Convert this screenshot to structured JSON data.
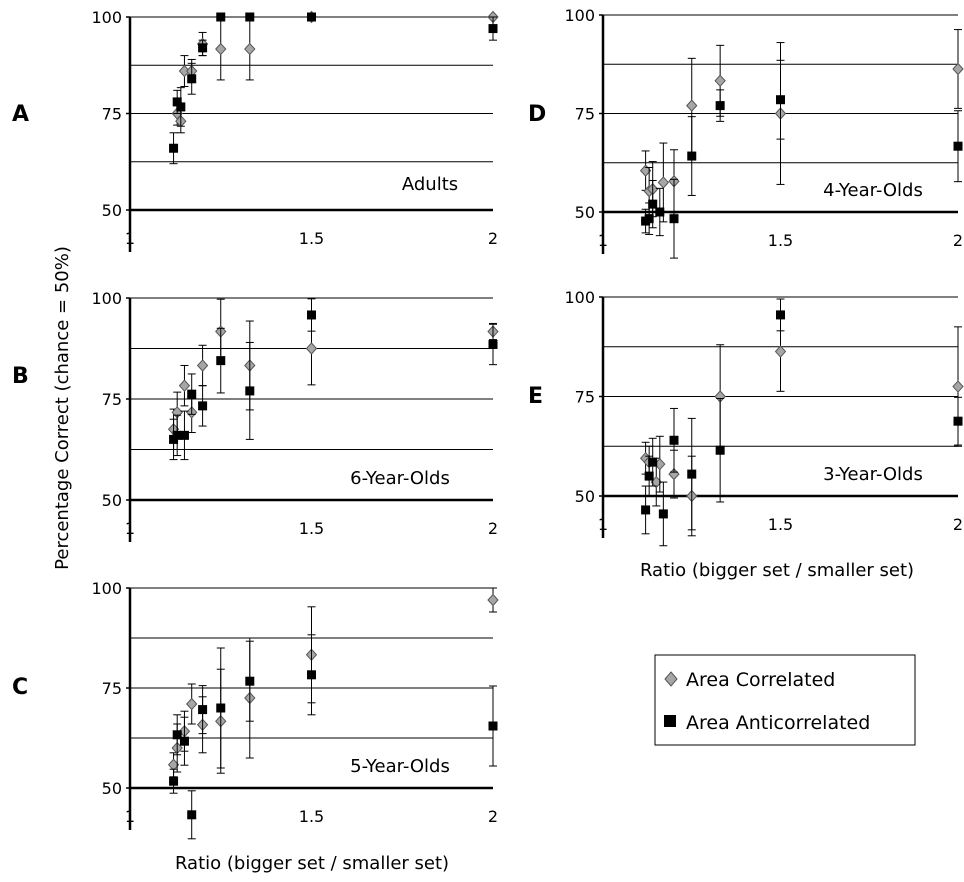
{
  "figure": {
    "ylabel": "Percentage Correct (chance = 50%)",
    "xlabel_left": "Ratio (bigger set / smaller set)",
    "xlabel_right": "Ratio (bigger set / smaller set)",
    "legend": [
      {
        "label": "Area Correlated",
        "marker": "diamond",
        "color": "#a6a6a6"
      },
      {
        "label": "Area Anticorrelated",
        "marker": "square",
        "color": "#000000"
      }
    ]
  },
  "chart_data": [
    {
      "type": "scatter",
      "panel": "A",
      "title": "Adults",
      "xlim": [
        1,
        2
      ],
      "ylim": [
        50,
        100
      ],
      "xticks": [
        "1",
        "1.5",
        "2"
      ],
      "yticks": [
        "50",
        "75",
        "100"
      ],
      "gridlines": [
        62.5,
        75,
        87.5,
        100
      ],
      "series": [
        {
          "name": "Area Correlated",
          "points": [
            {
              "x": 1.13,
              "y": 75,
              "err": 3
            },
            {
              "x": 1.14,
              "y": 73,
              "err": 3
            },
            {
              "x": 1.15,
              "y": 86,
              "err": 4
            },
            {
              "x": 1.17,
              "y": 86,
              "err": 3
            },
            {
              "x": 1.2,
              "y": 93,
              "err": 3
            },
            {
              "x": 1.25,
              "y": 91.7,
              "err": 8
            },
            {
              "x": 1.33,
              "y": 91.7,
              "err": 8
            },
            {
              "x": 1.5,
              "y": 100,
              "err": 0
            },
            {
              "x": 2,
              "y": 100,
              "err": 0
            }
          ]
        },
        {
          "name": "Area Anticorrelated",
          "points": [
            {
              "x": 1.12,
              "y": 66,
              "err": 4
            },
            {
              "x": 1.13,
              "y": 78,
              "err": 3
            },
            {
              "x": 1.14,
              "y": 76.7,
              "err": 5
            },
            {
              "x": 1.17,
              "y": 84,
              "err": 4
            },
            {
              "x": 1.2,
              "y": 92,
              "err": 2
            },
            {
              "x": 1.25,
              "y": 100,
              "err": 0
            },
            {
              "x": 1.33,
              "y": 100,
              "err": 0
            },
            {
              "x": 1.5,
              "y": 100,
              "err": 0
            },
            {
              "x": 2,
              "y": 97,
              "err": 3
            }
          ]
        }
      ]
    },
    {
      "type": "scatter",
      "panel": "B",
      "title": "6-Year-Olds",
      "xlim": [
        1,
        2
      ],
      "ylim": [
        50,
        100
      ],
      "xticks": [
        "1",
        "1.5",
        "2"
      ],
      "yticks": [
        "50",
        "75",
        "100"
      ],
      "gridlines": [
        62.5,
        75,
        87.5,
        100
      ],
      "series": [
        {
          "name": "Area Correlated",
          "points": [
            {
              "x": 1.12,
              "y": 67.5,
              "err": 5
            },
            {
              "x": 1.13,
              "y": 71.7,
              "err": 5
            },
            {
              "x": 1.15,
              "y": 78.3,
              "err": 5
            },
            {
              "x": 1.17,
              "y": 71.7,
              "err": 5
            },
            {
              "x": 1.2,
              "y": 83.3,
              "err": 5
            },
            {
              "x": 1.25,
              "y": 91.7,
              "err": 8
            },
            {
              "x": 1.33,
              "y": 83.3,
              "err": 11
            },
            {
              "x": 1.5,
              "y": 87.5,
              "err": 9
            },
            {
              "x": 2,
              "y": 91.7,
              "err": 2
            }
          ]
        },
        {
          "name": "Area Anticorrelated",
          "points": [
            {
              "x": 1.12,
              "y": 65,
              "err": 5
            },
            {
              "x": 1.13,
              "y": 66,
              "err": 5
            },
            {
              "x": 1.15,
              "y": 66,
              "err": 6
            },
            {
              "x": 1.17,
              "y": 76.2,
              "err": 5
            },
            {
              "x": 1.2,
              "y": 73.3,
              "err": 5
            },
            {
              "x": 1.25,
              "y": 84.5,
              "err": 8
            },
            {
              "x": 1.33,
              "y": 77,
              "err": 12
            },
            {
              "x": 1.5,
              "y": 95.8,
              "err": 4
            },
            {
              "x": 2,
              "y": 88.5,
              "err": 5
            }
          ]
        }
      ]
    },
    {
      "type": "scatter",
      "panel": "C",
      "title": "5-Year-Olds",
      "xlim": [
        1,
        2
      ],
      "ylim": [
        50,
        100
      ],
      "xticks": [
        "1",
        "1.5",
        "2"
      ],
      "yticks": [
        "50",
        "75",
        "100"
      ],
      "gridlines": [
        62.5,
        75,
        87.5,
        100
      ],
      "series": [
        {
          "name": "Area Correlated",
          "points": [
            {
              "x": 1.12,
              "y": 55.8,
              "err": 3
            },
            {
              "x": 1.13,
              "y": 60,
              "err": 6
            },
            {
              "x": 1.15,
              "y": 64.2,
              "err": 5
            },
            {
              "x": 1.17,
              "y": 71,
              "err": 5
            },
            {
              "x": 1.2,
              "y": 65.8,
              "err": 7
            },
            {
              "x": 1.25,
              "y": 66.7,
              "err": 13
            },
            {
              "x": 1.33,
              "y": 72.5,
              "err": 15
            },
            {
              "x": 1.5,
              "y": 83.3,
              "err": 12
            },
            {
              "x": 2,
              "y": 97,
              "err": 3
            }
          ]
        },
        {
          "name": "Area Anticorrelated",
          "points": [
            {
              "x": 1.12,
              "y": 51.7,
              "err": 3
            },
            {
              "x": 1.13,
              "y": 63.3,
              "err": 5
            },
            {
              "x": 1.15,
              "y": 61.7,
              "err": 6
            },
            {
              "x": 1.17,
              "y": 43.3,
              "err": 6
            },
            {
              "x": 1.2,
              "y": 69.6,
              "err": 6
            },
            {
              "x": 1.25,
              "y": 70,
              "err": 15
            },
            {
              "x": 1.33,
              "y": 76.7,
              "err": 10
            },
            {
              "x": 1.5,
              "y": 78.3,
              "err": 10
            },
            {
              "x": 2,
              "y": 65.5,
              "err": 10
            }
          ]
        }
      ]
    },
    {
      "type": "scatter",
      "panel": "D",
      "title": "4-Year-Olds",
      "xlim": [
        1,
        2
      ],
      "ylim": [
        50,
        100
      ],
      "xticks": [
        "1",
        "1.5",
        "2"
      ],
      "yticks": [
        "50",
        "75",
        "100"
      ],
      "gridlines": [
        62.5,
        75,
        87.5,
        100
      ],
      "series": [
        {
          "name": "Area Correlated",
          "points": [
            {
              "x": 1.12,
              "y": 60.5,
              "err": 5
            },
            {
              "x": 1.13,
              "y": 55.3,
              "err": 6
            },
            {
              "x": 1.14,
              "y": 55.8,
              "err": 7
            },
            {
              "x": 1.17,
              "y": 57.5,
              "err": 10
            },
            {
              "x": 1.2,
              "y": 57.8,
              "err": 8
            },
            {
              "x": 1.25,
              "y": 77,
              "err": 12
            },
            {
              "x": 1.33,
              "y": 83.3,
              "err": 9
            },
            {
              "x": 1.5,
              "y": 75,
              "err": 18
            },
            {
              "x": 2,
              "y": 86.3,
              "err": 10
            }
          ]
        },
        {
          "name": "Area Anticorrelated",
          "points": [
            {
              "x": 1.12,
              "y": 47.7,
              "err": 3
            },
            {
              "x": 1.13,
              "y": 48.3,
              "err": 4
            },
            {
              "x": 1.14,
              "y": 52,
              "err": 6
            },
            {
              "x": 1.16,
              "y": 50,
              "err": 6
            },
            {
              "x": 1.2,
              "y": 48.3,
              "err": 10
            },
            {
              "x": 1.25,
              "y": 64.2,
              "err": 10
            },
            {
              "x": 1.33,
              "y": 77,
              "err": 4
            },
            {
              "x": 1.5,
              "y": 78.5,
              "err": 10
            },
            {
              "x": 2,
              "y": 66.7,
              "err": 9
            }
          ]
        }
      ]
    },
    {
      "type": "scatter",
      "panel": "E",
      "title": "3-Year-Olds",
      "xlim": [
        1,
        2
      ],
      "ylim": [
        50,
        100
      ],
      "xticks": [
        "1",
        "1.5",
        "2"
      ],
      "yticks": [
        "50",
        "75",
        "100"
      ],
      "gridlines": [
        62.5,
        75,
        87.5,
        100
      ],
      "series": [
        {
          "name": "Area Correlated",
          "points": [
            {
              "x": 1.12,
              "y": 59.5,
              "err": 4
            },
            {
              "x": 1.13,
              "y": 58.5,
              "err": 4
            },
            {
              "x": 1.15,
              "y": 53.5,
              "err": 6
            },
            {
              "x": 1.16,
              "y": 58,
              "err": 7
            },
            {
              "x": 1.2,
              "y": 55.5,
              "err": 6
            },
            {
              "x": 1.25,
              "y": 50,
              "err": 10
            },
            {
              "x": 1.33,
              "y": 75,
              "err": 13
            },
            {
              "x": 1.5,
              "y": 86.3,
              "err": 10
            },
            {
              "x": 2,
              "y": 77.5,
              "err": 15
            }
          ]
        },
        {
          "name": "Area Anticorrelated",
          "points": [
            {
              "x": 1.12,
              "y": 46.5,
              "err": 6
            },
            {
              "x": 1.13,
              "y": 55,
              "err": 5
            },
            {
              "x": 1.14,
              "y": 58.5,
              "err": 6
            },
            {
              "x": 1.17,
              "y": 45.5,
              "err": 8
            },
            {
              "x": 1.2,
              "y": 64,
              "err": 8
            },
            {
              "x": 1.25,
              "y": 55.5,
              "err": 14
            },
            {
              "x": 1.33,
              "y": 61.5,
              "err": 13
            },
            {
              "x": 1.5,
              "y": 95.5,
              "err": 4
            },
            {
              "x": 2,
              "y": 68.8,
              "err": 6
            }
          ]
        }
      ]
    }
  ]
}
